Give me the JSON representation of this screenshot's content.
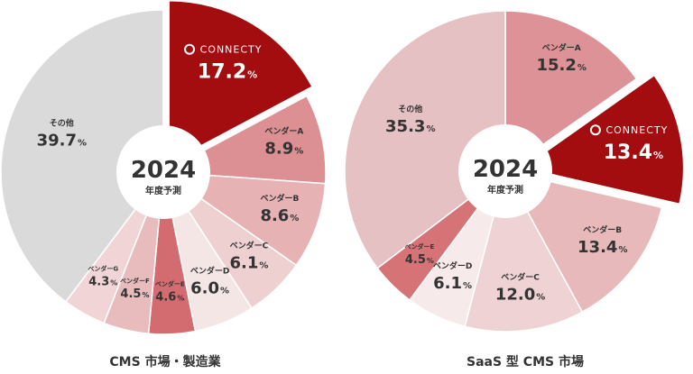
{
  "chart_data": [
    {
      "type": "pie",
      "title": "CMS 市場・製造業",
      "center_year": "2024",
      "center_sub": "年度予測",
      "start_angle_deg": -90,
      "slices": [
        {
          "label": "CONNECTY",
          "value": 17.2,
          "display": "17.2",
          "color": "#a30d10",
          "exploded": true,
          "is_brand": true
        },
        {
          "label": "ベンダーA",
          "value": 8.9,
          "display": "8.9",
          "color": "#dc9093"
        },
        {
          "label": "ベンダーB",
          "value": 8.6,
          "display": "8.6",
          "color": "#e6b2b4"
        },
        {
          "label": "ベンダーC",
          "value": 6.1,
          "display": "6.1",
          "color": "#eed0d1"
        },
        {
          "label": "ベンダーD",
          "value": 6.0,
          "display": "6.0",
          "color": "#f5e6e6"
        },
        {
          "label": "ベンダーE",
          "value": 4.6,
          "display": "4.6",
          "color": "#d36c70"
        },
        {
          "label": "ベンダーF",
          "value": 4.5,
          "display": "4.5",
          "color": "#e8bbbd"
        },
        {
          "label": "ベンダーG",
          "value": 4.3,
          "display": "4.3",
          "color": "#f1d5d6"
        },
        {
          "label": "その他",
          "value": 39.7,
          "display": "39.7",
          "color": "#dadada"
        }
      ]
    },
    {
      "type": "pie",
      "title": "SaaS 型 CMS 市場",
      "center_year": "2024",
      "center_sub": "年度予測",
      "start_angle_deg": -90,
      "slices": [
        {
          "label": "ベンダーA",
          "value": 15.2,
          "display": "15.2",
          "color": "#dc9296"
        },
        {
          "label": "CONNECTY",
          "value": 13.4,
          "display": "13.4",
          "color": "#a30d10",
          "exploded": true,
          "is_brand": true
        },
        {
          "label": "ベンダーB",
          "value": 13.4,
          "display": "13.4",
          "color": "#e8b9bb"
        },
        {
          "label": "ベンダーC",
          "value": 12.0,
          "display": "12.0",
          "color": "#efd2d3"
        },
        {
          "label": "ベンダーD",
          "value": 6.1,
          "display": "6.1",
          "color": "#f7eaea"
        },
        {
          "label": "ベンダーE",
          "value": 4.5,
          "display": "4.5",
          "color": "#d57377"
        },
        {
          "label": "その他",
          "value": 35.3,
          "display": "35.3",
          "color": "#e6c1c3"
        }
      ]
    }
  ],
  "percent_unit": "%",
  "brand_label": "CONNECTY",
  "colors": {
    "text_dark": "#333333",
    "text_light": "#ffffff",
    "brand": "#a30d10"
  }
}
